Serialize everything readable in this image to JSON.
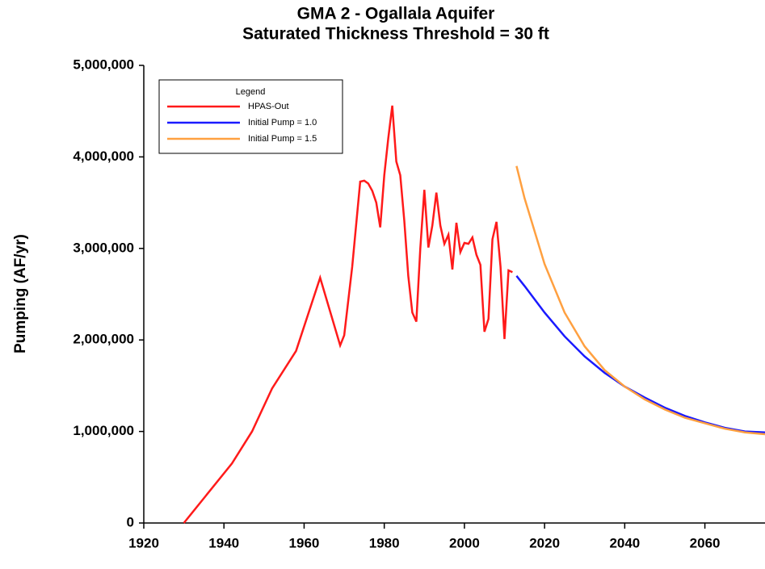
{
  "chart_data": {
    "type": "line",
    "title": "GMA 2 - Ogallala Aquifer",
    "subtitle": "Saturated Thickness Threshold = 30 ft",
    "y_label": "Pumping (AF/yr)",
    "legend_title": "Legend",
    "legend_position": "upper left",
    "xlim": [
      1920,
      2075
    ],
    "xticks": [
      1920,
      1940,
      1960,
      1980,
      2000,
      2020,
      2040,
      2060
    ],
    "ylim": [
      0,
      5000000
    ],
    "yticks": [
      0,
      {
        "value": 1000000,
        "label": "1,000,000"
      },
      {
        "value": 2000000,
        "label": "2,000,000"
      },
      {
        "value": 3000000,
        "label": "3,000,000"
      },
      {
        "value": 4000000,
        "label": "4,000,000"
      },
      {
        "value": 5000000,
        "label": "5,000,000"
      }
    ],
    "series": [
      {
        "name": "HPAS-Out",
        "color": "#ff1a1a",
        "x": [
          1930,
          1942,
          1947,
          1952,
          1958,
          1964,
          1969,
          1970,
          1972,
          1974,
          1975,
          1976,
          1977,
          1978,
          1979,
          1980,
          1981,
          1982,
          1983,
          1984,
          1985,
          1986,
          1987,
          1988,
          1989,
          1990,
          1991,
          1992,
          1993,
          1994,
          1995,
          1996,
          1997,
          1998,
          1999,
          2000,
          2001,
          2002,
          2003,
          2004,
          2005,
          2006,
          2007,
          2008,
          2009,
          2010,
          2011,
          2012
        ],
        "values": [
          0,
          650000,
          1000000,
          1470000,
          1880000,
          2680000,
          1940000,
          2050000,
          2800000,
          3730000,
          3740000,
          3710000,
          3630000,
          3500000,
          3230000,
          3800000,
          4200000,
          4560000,
          3950000,
          3800000,
          3300000,
          2700000,
          2300000,
          2200000,
          3000000,
          3640000,
          3010000,
          3250000,
          3610000,
          3250000,
          3050000,
          3150000,
          2770000,
          3280000,
          2960000,
          3060000,
          3050000,
          3120000,
          2930000,
          2820000,
          2090000,
          2230000,
          3100000,
          3290000,
          2800000,
          2010000,
          2760000,
          2740000
        ]
      },
      {
        "name": "Initial Pump = 1.0",
        "color": "#1a1aff",
        "x": [
          2013,
          2015,
          2020,
          2025,
          2030,
          2035,
          2040,
          2045,
          2050,
          2055,
          2060,
          2065,
          2070,
          2075
        ],
        "values": [
          2700000,
          2590000,
          2300000,
          2040000,
          1820000,
          1640000,
          1490000,
          1370000,
          1260000,
          1170000,
          1100000,
          1040000,
          1000000,
          990000
        ]
      },
      {
        "name": "Initial Pump = 1.5",
        "color": "#ffa040",
        "x": [
          2013,
          2015,
          2020,
          2025,
          2030,
          2035,
          2040,
          2045,
          2050,
          2055,
          2060,
          2065,
          2070,
          2075
        ],
        "values": [
          3900000,
          3550000,
          2830000,
          2300000,
          1930000,
          1670000,
          1490000,
          1350000,
          1240000,
          1150000,
          1090000,
          1030000,
          990000,
          970000
        ]
      }
    ]
  }
}
